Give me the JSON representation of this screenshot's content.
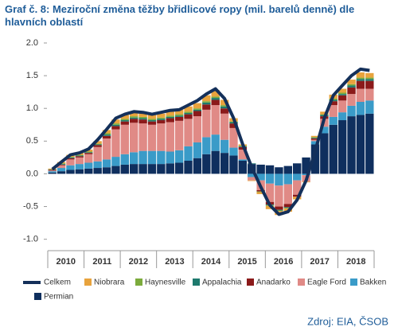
{
  "chart_data": {
    "type": "stacked-bar-line",
    "title": "Graf č. 8: Meziroční změna těžby břidlicové ropy (mil. barelů denně) dle hlavních oblastí",
    "source": "Zdroj: EIA, ČSOB",
    "categories": [
      null,
      null,
      "2010",
      null,
      null,
      null,
      "2011",
      null,
      null,
      null,
      "2012",
      null,
      null,
      null,
      "2013",
      null,
      null,
      null,
      "2014",
      null,
      null,
      null,
      "2015",
      null,
      null,
      null,
      "2016",
      null,
      null,
      null,
      "2017",
      null,
      null,
      null,
      "2018",
      null
    ],
    "ylim": [
      -1.15,
      2.0
    ],
    "yticks": [
      {
        "value": 2,
        "label": "2.0"
      },
      {
        "value": 1.5,
        "label": "1.5"
      },
      {
        "value": 1,
        "label": "1.0"
      },
      {
        "value": 0.5,
        "label": "0.5"
      },
      {
        "value": 0,
        "label": "0.0"
      },
      {
        "value": -0.5,
        "label": "-0.5"
      },
      {
        "value": -1,
        "label": "-1.0"
      }
    ],
    "line": {
      "name": "Celkem",
      "color": "#14305a",
      "values": [
        0.07,
        0.18,
        0.29,
        0.32,
        0.38,
        0.52,
        0.68,
        0.85,
        0.91,
        0.95,
        0.94,
        0.91,
        0.94,
        0.97,
        0.98,
        1.05,
        1.12,
        1.22,
        1.3,
        1.15,
        0.85,
        0.45,
        0.1,
        -0.2,
        -0.48,
        -0.62,
        -0.58,
        -0.4,
        -0.1,
        0.35,
        0.85,
        1.2,
        1.35,
        1.5,
        1.6,
        1.58
      ]
    },
    "series": [
      {
        "name": "Niobrara",
        "color": "#e8a33d",
        "values": [
          0.01,
          0.02,
          0.03,
          0.03,
          0.03,
          0.04,
          0.05,
          0.06,
          0.06,
          0.06,
          0.06,
          0.06,
          0.06,
          0.07,
          0.07,
          0.08,
          0.08,
          0.09,
          0.1,
          0.08,
          0.05,
          0.02,
          -0.01,
          -0.03,
          -0.05,
          -0.06,
          -0.05,
          -0.04,
          -0.01,
          0.02,
          0.04,
          0.06,
          0.06,
          0.07,
          0.08,
          0.07
        ]
      },
      {
        "name": "Haynesville",
        "color": "#7cab3c",
        "values": [
          0.005,
          0.01,
          0.01,
          0.01,
          0.01,
          0.01,
          0.02,
          0.02,
          0.02,
          0.02,
          0.02,
          0.02,
          0.02,
          0.02,
          0.02,
          0.02,
          0.02,
          0.02,
          0.02,
          0.02,
          0.01,
          0.01,
          0,
          -0.01,
          -0.01,
          -0.01,
          -0.01,
          0,
          0,
          0.01,
          0.01,
          0.02,
          0.02,
          0.02,
          0.02,
          0.02
        ]
      },
      {
        "name": "Appalachia",
        "color": "#1e7a6d",
        "values": [
          0.005,
          0.01,
          0.01,
          0.01,
          0.01,
          0.01,
          0.02,
          0.02,
          0.02,
          0.02,
          0.02,
          0.02,
          0.02,
          0.02,
          0.02,
          0.02,
          0.02,
          0.03,
          0.03,
          0.03,
          0.02,
          0.01,
          0.01,
          0,
          -0.01,
          -0.01,
          -0.01,
          0,
          0,
          0.01,
          0.02,
          0.02,
          0.02,
          0.03,
          0.03,
          0.03
        ]
      },
      {
        "name": "Anadarko",
        "color": "#8b1a1a",
        "values": [
          0.01,
          0.01,
          0.02,
          0.02,
          0.02,
          0.03,
          0.04,
          0.05,
          0.05,
          0.06,
          0.06,
          0.05,
          0.05,
          0.06,
          0.06,
          0.07,
          0.08,
          0.08,
          0.08,
          0.08,
          0.07,
          0.04,
          0,
          -0.02,
          -0.04,
          -0.05,
          -0.05,
          -0.03,
          0,
          0.02,
          0.04,
          0.06,
          0.08,
          0.1,
          0.12,
          0.12
        ]
      },
      {
        "name": "Eagle Ford",
        "color": "#e08a86",
        "values": [
          0.01,
          0.04,
          0.09,
          0.1,
          0.13,
          0.22,
          0.32,
          0.42,
          0.45,
          0.45,
          0.42,
          0.4,
          0.42,
          0.45,
          0.45,
          0.42,
          0.4,
          0.42,
          0.45,
          0.4,
          0.3,
          0.15,
          -0.05,
          -0.15,
          -0.28,
          -0.32,
          -0.3,
          -0.22,
          -0.1,
          0.02,
          0.12,
          0.18,
          0.18,
          0.18,
          0.2,
          0.18
        ]
      },
      {
        "name": "Bakken",
        "color": "#3a9bc8",
        "values": [
          0.02,
          0.05,
          0.07,
          0.08,
          0.09,
          0.1,
          0.12,
          0.14,
          0.16,
          0.18,
          0.2,
          0.2,
          0.2,
          0.18,
          0.19,
          0.22,
          0.24,
          0.26,
          0.25,
          0.2,
          0.12,
          0.02,
          -0.05,
          -0.1,
          -0.15,
          -0.18,
          -0.16,
          -0.1,
          -0.02,
          0.05,
          0.1,
          0.12,
          0.12,
          0.16,
          0.2,
          0.2
        ]
      },
      {
        "name": "Permian",
        "color": "#0f2f5e",
        "values": [
          0.02,
          0.04,
          0.06,
          0.07,
          0.08,
          0.09,
          0.1,
          0.12,
          0.14,
          0.15,
          0.15,
          0.15,
          0.15,
          0.16,
          0.17,
          0.2,
          0.24,
          0.3,
          0.35,
          0.32,
          0.28,
          0.2,
          0.15,
          0.14,
          0.13,
          0.1,
          0.12,
          0.16,
          0.25,
          0.45,
          0.62,
          0.75,
          0.82,
          0.88,
          0.9,
          0.92
        ]
      }
    ]
  }
}
